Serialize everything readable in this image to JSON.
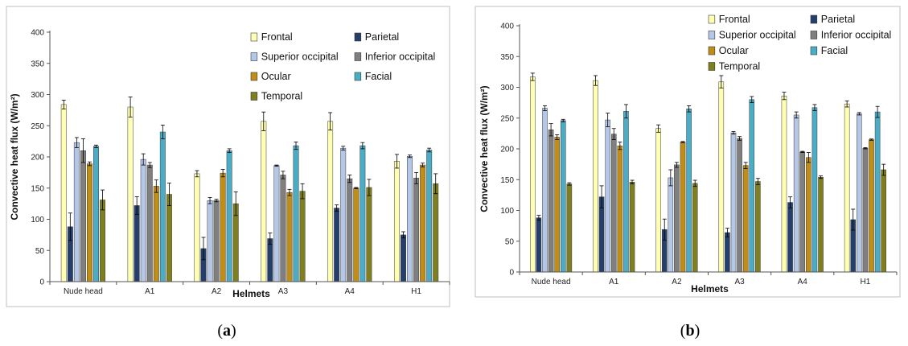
{
  "colors": {
    "Frontal": "#ffffb3",
    "Parietal": "#243f6b",
    "Superior occipital": "#b4c7e7",
    "Inferior occipital": "#7f7f7f",
    "Ocular": "#c08e16",
    "Facial": "#4bacc6",
    "Temporal": "#7f7f1f"
  },
  "chart_data": [
    {
      "type": "bar",
      "panel_label": "(a)",
      "panel_letter": "a",
      "xlabel": "Helmets",
      "ylabel": "Convective heat flux (W/m²)",
      "ylim": [
        0,
        400
      ],
      "yticks": [
        0,
        50,
        100,
        150,
        200,
        250,
        300,
        350,
        400
      ],
      "grid": false,
      "legend_position": "top-right",
      "categories": [
        "Nude head",
        "A1",
        "A2",
        "A3",
        "A4",
        "H1"
      ],
      "series": [
        {
          "name": "Frontal",
          "values": [
            284,
            280,
            173,
            257,
            257,
            193
          ],
          "errors": [
            7,
            16,
            5,
            15,
            14,
            11
          ]
        },
        {
          "name": "Parietal",
          "values": [
            88,
            122,
            53,
            69,
            118,
            75
          ],
          "errors": [
            22,
            14,
            18,
            9,
            5,
            5
          ]
        },
        {
          "name": "Superior occipital",
          "values": [
            223,
            196,
            130,
            186,
            214,
            201
          ],
          "errors": [
            8,
            9,
            5,
            1,
            3,
            2
          ]
        },
        {
          "name": "Inferior occipital",
          "values": [
            210,
            187,
            130,
            171,
            165,
            166
          ],
          "errors": [
            19,
            4,
            2,
            6,
            6,
            9
          ]
        },
        {
          "name": "Ocular",
          "values": [
            189,
            153,
            174,
            143,
            150,
            187
          ],
          "errors": [
            3,
            10,
            6,
            5,
            1,
            3
          ]
        },
        {
          "name": "Facial",
          "values": [
            217,
            240,
            210,
            218,
            218,
            211
          ],
          "errors": [
            2,
            11,
            3,
            6,
            5,
            3
          ]
        },
        {
          "name": "Temporal",
          "values": [
            131,
            140,
            125,
            145,
            151,
            157
          ],
          "errors": [
            16,
            18,
            19,
            12,
            13,
            16
          ]
        }
      ]
    },
    {
      "type": "bar",
      "panel_label": "(b)",
      "panel_letter": "b",
      "xlabel": "Helmets",
      "ylabel": "Convective heat flux (W/m²)",
      "ylim": [
        0,
        400
      ],
      "yticks": [
        0,
        50,
        100,
        150,
        200,
        250,
        300,
        350,
        400
      ],
      "grid": false,
      "legend_position": "top-right",
      "categories": [
        "Nude head",
        "A1",
        "A2",
        "A3",
        "A4",
        "H1"
      ],
      "series": [
        {
          "name": "Frontal",
          "values": [
            317,
            311,
            233,
            309,
            286,
            273
          ],
          "errors": [
            6,
            8,
            6,
            10,
            6,
            5
          ]
        },
        {
          "name": "Parietal",
          "values": [
            88,
            122,
            69,
            64,
            113,
            85
          ],
          "errors": [
            4,
            18,
            17,
            7,
            9,
            17
          ]
        },
        {
          "name": "Superior occipital",
          "values": [
            266,
            247,
            153,
            226,
            255,
            257
          ],
          "errors": [
            4,
            11,
            13,
            2,
            5,
            2
          ]
        },
        {
          "name": "Inferior occipital",
          "values": [
            231,
            224,
            174,
            217,
            195,
            201
          ],
          "errors": [
            10,
            9,
            4,
            3,
            1,
            1
          ]
        },
        {
          "name": "Ocular",
          "values": [
            219,
            205,
            211,
            173,
            186,
            215
          ],
          "errors": [
            4,
            6,
            1,
            5,
            8,
            1
          ]
        },
        {
          "name": "Facial",
          "values": [
            246,
            261,
            265,
            280,
            267,
            260
          ],
          "errors": [
            2,
            11,
            5,
            5,
            5,
            9
          ]
        },
        {
          "name": "Temporal",
          "values": [
            143,
            146,
            144,
            147,
            154,
            166
          ],
          "errors": [
            2,
            3,
            5,
            5,
            2,
            9
          ]
        }
      ]
    }
  ]
}
